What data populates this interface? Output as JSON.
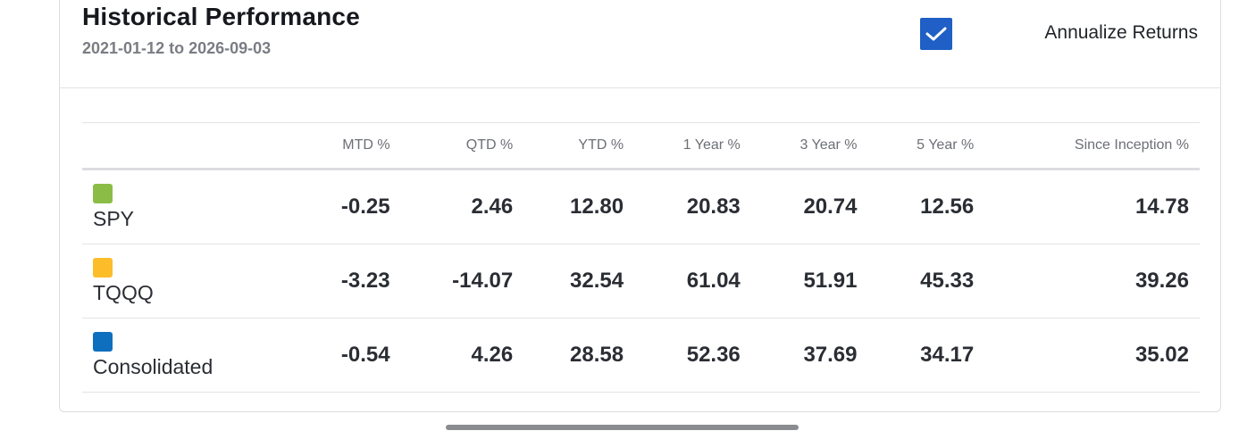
{
  "header": {
    "title": "Historical Performance",
    "date_range": "2021-01-12 to 2026-09-03",
    "annualize": {
      "label": "Annualize Returns",
      "checked": true,
      "checkbox_color": "#1f5fc6"
    }
  },
  "table": {
    "columns": [
      "",
      "MTD %",
      "QTD %",
      "YTD %",
      "1 Year %",
      "3 Year %",
      "5 Year %",
      "Since Inception %"
    ],
    "rows": [
      {
        "name": "SPY",
        "color": "#8bbd46",
        "values": [
          "-0.25",
          "2.46",
          "12.80",
          "20.83",
          "20.74",
          "12.56",
          "14.78"
        ]
      },
      {
        "name": "TQQQ",
        "color": "#fbbd2a",
        "values": [
          "-3.23",
          "-14.07",
          "32.54",
          "61.04",
          "51.91",
          "45.33",
          "39.26"
        ]
      },
      {
        "name": "Consolidated",
        "color": "#0f6fbf",
        "values": [
          "-0.54",
          "4.26",
          "28.58",
          "52.36",
          "37.69",
          "34.17",
          "35.02"
        ]
      }
    ]
  },
  "icons": {
    "checkbox": "checkmark-icon",
    "legend": "color-swatch"
  }
}
